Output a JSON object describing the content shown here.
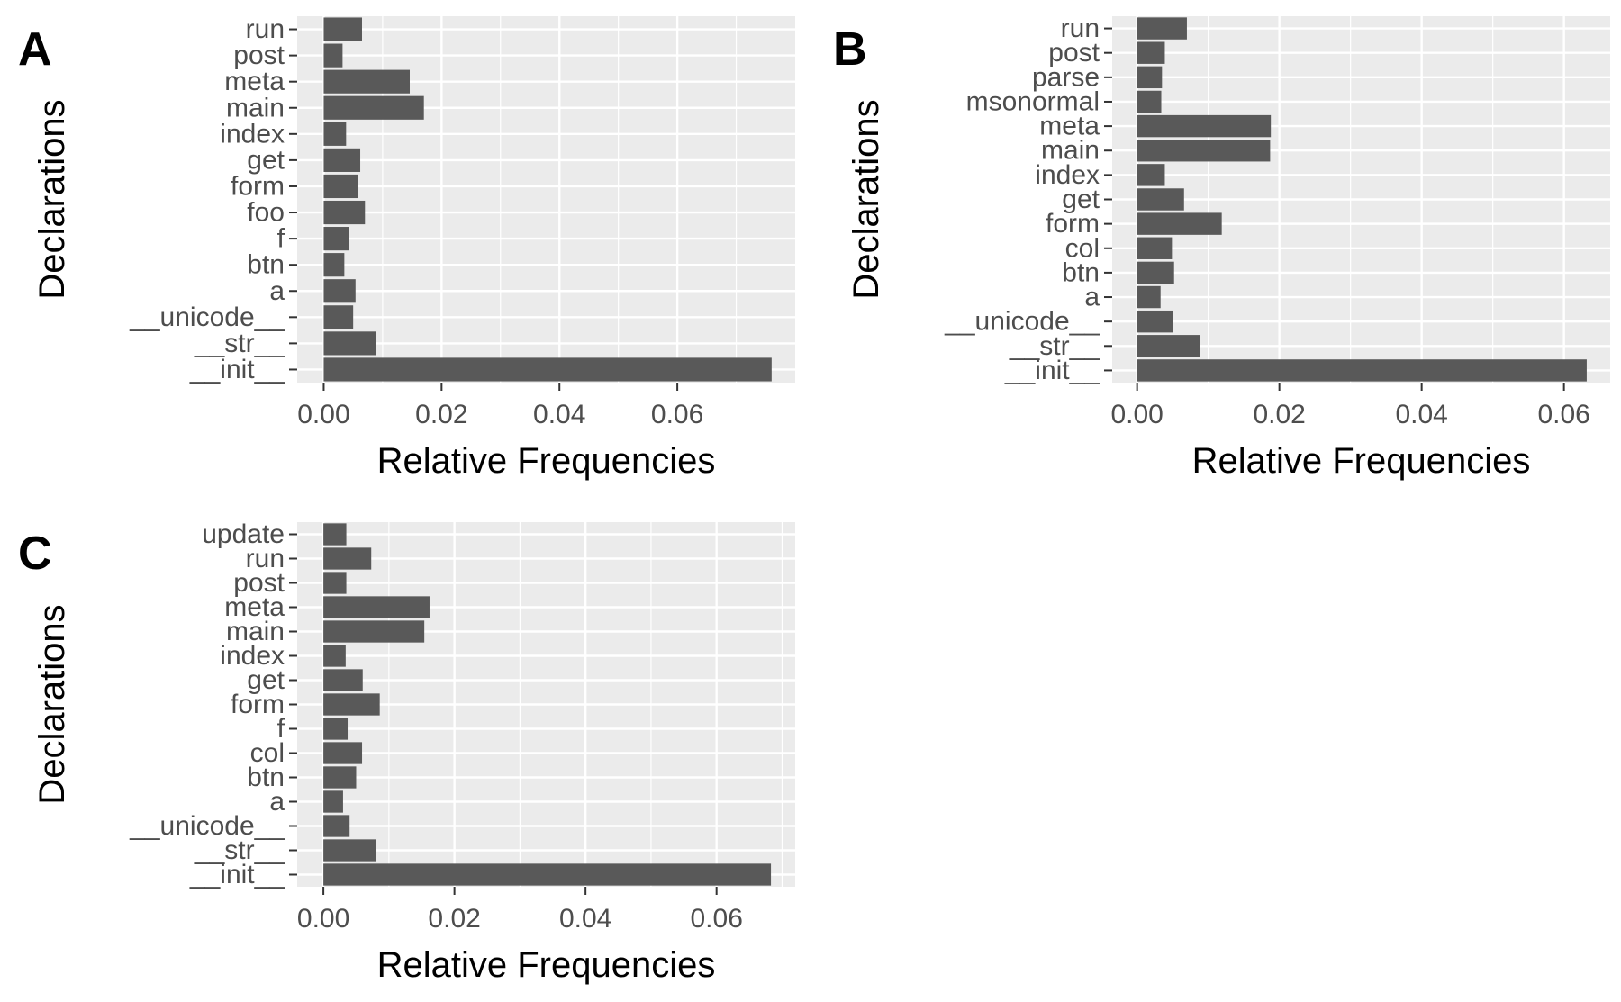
{
  "chart_data": [
    {
      "type": "bar",
      "orientation": "horizontal",
      "panel": "A",
      "categories": [
        "run",
        "post",
        "meta",
        "main",
        "index",
        "get",
        "form",
        "foo",
        "f",
        "btn",
        "a",
        "__unicode__",
        "__str__",
        "__init__"
      ],
      "values": [
        0.0065,
        0.0032,
        0.0146,
        0.017,
        0.0038,
        0.0062,
        0.0058,
        0.007,
        0.0043,
        0.0035,
        0.0054,
        0.005,
        0.0089,
        0.076
      ],
      "xlabel": "Relative Frequencies",
      "ylabel": "Declarations",
      "xlim": [
        -0.0045,
        0.08
      ],
      "xticks": [
        0,
        0.02,
        0.04,
        0.06
      ],
      "xtick_labels": [
        "0.00",
        "0.02",
        "0.04",
        "0.06"
      ],
      "grid": true,
      "bar_color": "#595959",
      "panel_bg": "#ebebeb"
    },
    {
      "type": "bar",
      "orientation": "horizontal",
      "panel": "B",
      "categories": [
        "run",
        "post",
        "parse",
        "msonormal",
        "meta",
        "main",
        "index",
        "get",
        "form",
        "col",
        "btn",
        "a",
        "__unicode__",
        "__str__",
        "__init__"
      ],
      "values": [
        0.007,
        0.0039,
        0.0035,
        0.0034,
        0.0188,
        0.0187,
        0.0039,
        0.0066,
        0.0119,
        0.0049,
        0.0052,
        0.0033,
        0.005,
        0.0089,
        0.0632
      ],
      "xlabel": "Relative Frequencies",
      "ylabel": "Declarations",
      "xlim": [
        -0.0035,
        0.0665
      ],
      "xticks": [
        0,
        0.02,
        0.04,
        0.06
      ],
      "xtick_labels": [
        "0.00",
        "0.02",
        "0.04",
        "0.06"
      ],
      "grid": true,
      "bar_color": "#595959",
      "panel_bg": "#ebebeb"
    },
    {
      "type": "bar",
      "orientation": "horizontal",
      "panel": "C",
      "categories": [
        "update",
        "run",
        "post",
        "meta",
        "main",
        "index",
        "get",
        "form",
        "f",
        "col",
        "btn",
        "a",
        "__unicode__",
        "__str__",
        "__init__"
      ],
      "values": [
        0.0035,
        0.0073,
        0.0035,
        0.0162,
        0.0154,
        0.0034,
        0.006,
        0.0086,
        0.0037,
        0.0059,
        0.005,
        0.003,
        0.004,
        0.008,
        0.0683
      ],
      "xlabel": "Relative Frequencies",
      "ylabel": "Declarations",
      "xlim": [
        -0.004,
        0.072
      ],
      "xticks": [
        0,
        0.02,
        0.04,
        0.06
      ],
      "xtick_labels": [
        "0.00",
        "0.02",
        "0.04",
        "0.06"
      ],
      "grid": true,
      "bar_color": "#595959",
      "panel_bg": "#ebebeb"
    }
  ]
}
